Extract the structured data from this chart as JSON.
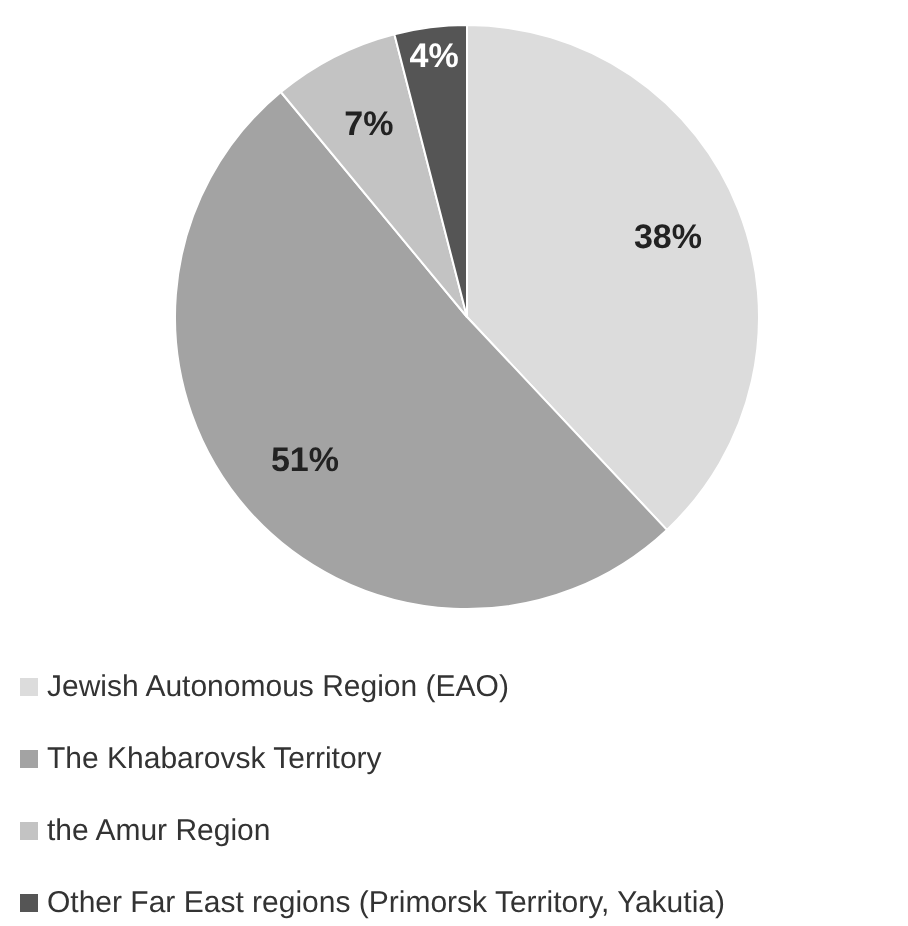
{
  "chart_data": {
    "type": "pie",
    "categories": [
      "Jewish Autonomous Region (EAO)",
      "The Khabarovsk Territory",
      "the Amur Region",
      "Other Far East regions (Primorsk Territory, Yakutia)"
    ],
    "values": [
      38,
      51,
      7,
      4
    ],
    "colors": [
      "#dcdcdc",
      "#a3a3a3",
      "#c3c3c3",
      "#555555"
    ],
    "value_labels": [
      "38%",
      "51%",
      "7%",
      "4%"
    ],
    "legend": "bottom"
  }
}
